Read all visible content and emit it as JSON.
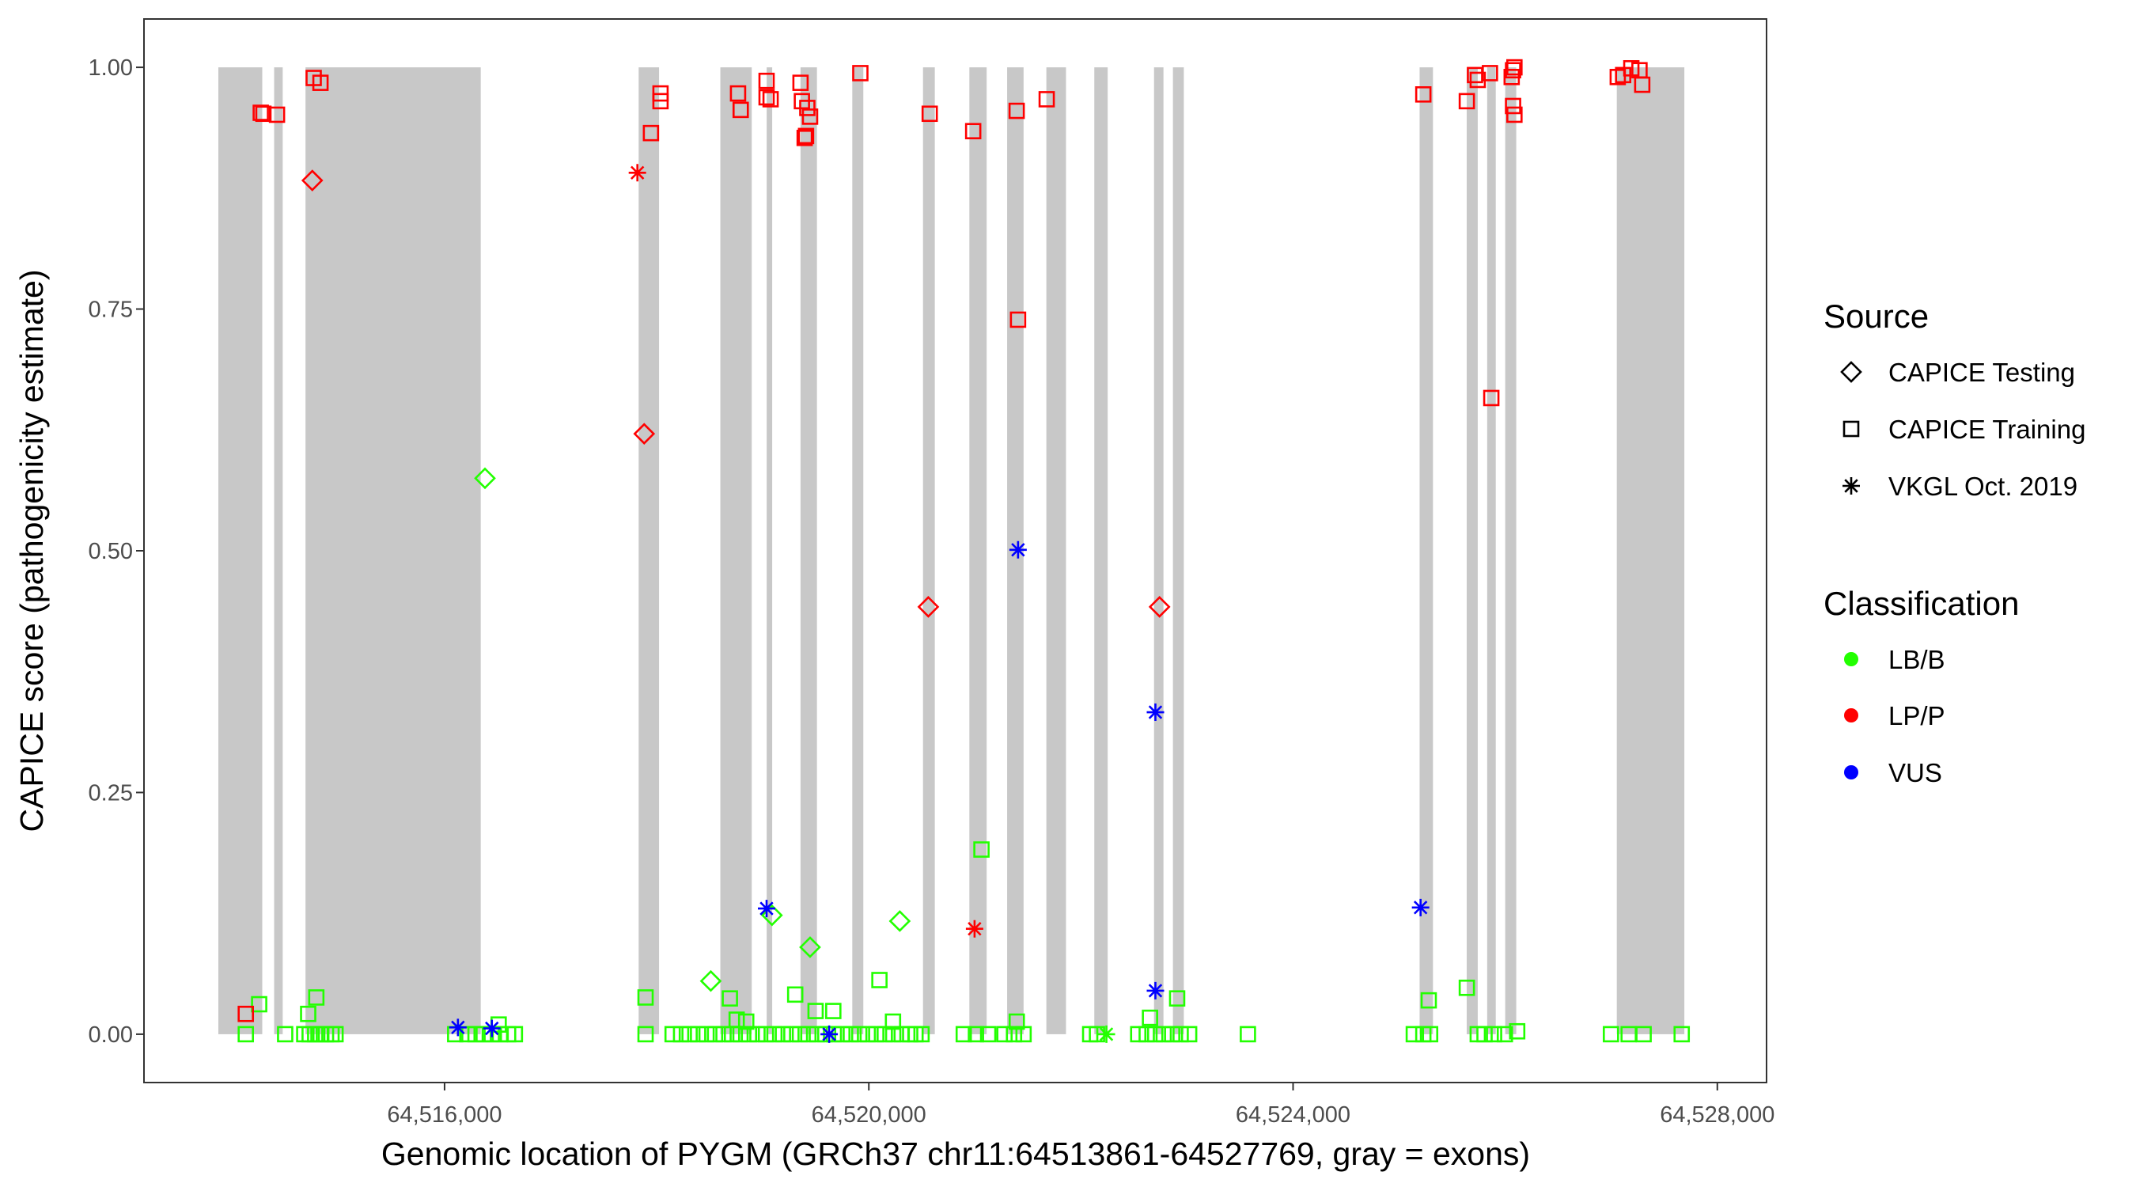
{
  "chart_data": {
    "type": "scatter",
    "xlabel": "Genomic location of PYGM (GRCh37 chr11:64513861-64527769, gray = exons)",
    "ylabel": "CAPICE score (pathogenicity estimate)",
    "xlim": [
      64513166,
      64528464
    ],
    "ylim": [
      -0.05,
      1.05
    ],
    "grid": false,
    "x_ticks": [
      {
        "value": 64516000,
        "label": "64,516,000"
      },
      {
        "value": 64520000,
        "label": "64,520,000"
      },
      {
        "value": 64524000,
        "label": "64,524,000"
      },
      {
        "value": 64528000,
        "label": "64,528,000"
      }
    ],
    "y_ticks": [
      {
        "value": 0,
        "label": "0.00"
      },
      {
        "value": 0.25,
        "label": "0.25"
      },
      {
        "value": 0.5,
        "label": "0.50"
      },
      {
        "value": 0.75,
        "label": "0.75"
      },
      {
        "value": 1,
        "label": "1.00"
      }
    ],
    "exon_band_color": "#c8c8c8",
    "exons": [
      [
        64513867,
        64514281
      ],
      [
        64514393,
        64514474
      ],
      [
        64514689,
        64516341
      ],
      [
        64517830,
        64518022
      ],
      [
        64518600,
        64518896
      ],
      [
        64519037,
        64519089
      ],
      [
        64519356,
        64519511
      ],
      [
        64519844,
        64519948
      ],
      [
        64520511,
        64520622
      ],
      [
        64520948,
        64521111
      ],
      [
        64521304,
        64521459
      ],
      [
        64521674,
        64521859
      ],
      [
        64522126,
        64522252
      ],
      [
        64522689,
        64522778
      ],
      [
        64522867,
        64522970
      ],
      [
        64525193,
        64525319
      ],
      [
        64525637,
        64525741
      ],
      [
        64525830,
        64525911
      ],
      [
        64526000,
        64526104
      ],
      [
        64527052,
        64527689
      ]
    ],
    "legend": {
      "placement": "right",
      "source_title": "Source",
      "sources": [
        {
          "key": "testing",
          "label": "CAPICE Testing",
          "shape": "diamond"
        },
        {
          "key": "training",
          "label": "CAPICE Training",
          "shape": "square"
        },
        {
          "key": "vkgl",
          "label": "VKGL Oct. 2019",
          "shape": "asterisk"
        }
      ],
      "class_title": "Classification",
      "classes": [
        {
          "key": "LB/B",
          "label": "LB/B",
          "color": "#22ff00"
        },
        {
          "key": "LP/P",
          "label": "LP/P",
          "color": "#ff0000"
        },
        {
          "key": "VUS",
          "label": "VUS",
          "color": "#0000ff"
        }
      ]
    },
    "series": [
      {
        "source": "training",
        "class": "LB/B",
        "points": [
          [
            64514126,
            0
          ],
          [
            64514497,
            0
          ],
          [
            64514677,
            0
          ],
          [
            64514728,
            0
          ],
          [
            64514780,
            0
          ],
          [
            64514831,
            0
          ],
          [
            64514882,
            0
          ],
          [
            64514934,
            0
          ],
          [
            64514972,
            0
          ],
          [
            64516100,
            0
          ],
          [
            64516215,
            0
          ],
          [
            64516292,
            0
          ],
          [
            64516369,
            0
          ],
          [
            64516445,
            0
          ],
          [
            64516522,
            0
          ],
          [
            64516599,
            0
          ],
          [
            64516663,
            0
          ],
          [
            64517895,
            0
          ],
          [
            64518150,
            0
          ],
          [
            64518230,
            0
          ],
          [
            64518310,
            0
          ],
          [
            64518390,
            0
          ],
          [
            64518470,
            0
          ],
          [
            64518550,
            0
          ],
          [
            64518630,
            0
          ],
          [
            64518710,
            0
          ],
          [
            64518790,
            0
          ],
          [
            64518870,
            0
          ],
          [
            64518950,
            0
          ],
          [
            64519030,
            0
          ],
          [
            64519110,
            0
          ],
          [
            64519190,
            0
          ],
          [
            64519270,
            0
          ],
          [
            64519350,
            0
          ],
          [
            64519430,
            0
          ],
          [
            64519510,
            0
          ],
          [
            64519590,
            0
          ],
          [
            64519670,
            0
          ],
          [
            64519750,
            0
          ],
          [
            64519830,
            0
          ],
          [
            64519910,
            0
          ],
          [
            64519990,
            0
          ],
          [
            64520070,
            0
          ],
          [
            64520150,
            0
          ],
          [
            64520230,
            0
          ],
          [
            64520310,
            0
          ],
          [
            64520390,
            0
          ],
          [
            64520440,
            0
          ],
          [
            64520497,
            0
          ],
          [
            64520895,
            0
          ],
          [
            64521010,
            0
          ],
          [
            64521125,
            0
          ],
          [
            64521279,
            0
          ],
          [
            64521369,
            0
          ],
          [
            64521459,
            0
          ],
          [
            64522087,
            0
          ],
          [
            64522151,
            0
          ],
          [
            64522540,
            0
          ],
          [
            64522620,
            0
          ],
          [
            64522700,
            0
          ],
          [
            64522780,
            0
          ],
          [
            64522860,
            0
          ],
          [
            64522940,
            0
          ],
          [
            64523020,
            0
          ],
          [
            64523574,
            0
          ],
          [
            64525138,
            0
          ],
          [
            64525228,
            0
          ],
          [
            64525292,
            0
          ],
          [
            64525741,
            0
          ],
          [
            64525805,
            0
          ],
          [
            64525895,
            0
          ],
          [
            64525997,
            0
          ],
          [
            64526113,
            0.003
          ],
          [
            64526997,
            0
          ],
          [
            64527164,
            0
          ],
          [
            64527305,
            0
          ],
          [
            64527664,
            0
          ],
          [
            64514252,
            0.031
          ],
          [
            64514714,
            0.021
          ],
          [
            64514791,
            0.038
          ],
          [
            64516510,
            0.01
          ],
          [
            64517895,
            0.038
          ],
          [
            64518690,
            0.037
          ],
          [
            64518754,
            0.015
          ],
          [
            64518844,
            0.013
          ],
          [
            64519306,
            0.041
          ],
          [
            64519498,
            0.024
          ],
          [
            64519665,
            0.024
          ],
          [
            64520100,
            0.056
          ],
          [
            64520228,
            0.013
          ],
          [
            64521062,
            0.191
          ],
          [
            64521395,
            0.013
          ],
          [
            64522651,
            0.017
          ],
          [
            64522907,
            0.037
          ],
          [
            64525279,
            0.035
          ],
          [
            64525638,
            0.048
          ]
        ]
      },
      {
        "source": "training",
        "class": "LP/P",
        "points": [
          [
            64514267,
            0.953
          ],
          [
            64514292,
            0.952
          ],
          [
            64514420,
            0.951
          ],
          [
            64514766,
            0.989
          ],
          [
            64514830,
            0.984
          ],
          [
            64514126,
            0.021
          ],
          [
            64518036,
            0.973
          ],
          [
            64518036,
            0.965
          ],
          [
            64517946,
            0.932
          ],
          [
            64518767,
            0.973
          ],
          [
            64518792,
            0.956
          ],
          [
            64519036,
            0.986
          ],
          [
            64519036,
            0.969
          ],
          [
            64519074,
            0.967
          ],
          [
            64519356,
            0.984
          ],
          [
            64519369,
            0.965
          ],
          [
            64519420,
            0.958
          ],
          [
            64519446,
            0.949
          ],
          [
            64519408,
            0.929
          ],
          [
            64519395,
            0.927
          ],
          [
            64519920,
            0.994
          ],
          [
            64520574,
            0.952
          ],
          [
            64520984,
            0.934
          ],
          [
            64521394,
            0.955
          ],
          [
            64521407,
            0.739
          ],
          [
            64521677,
            0.967
          ],
          [
            64525228,
            0.972
          ],
          [
            64525638,
            0.965
          ],
          [
            64525715,
            0.992
          ],
          [
            64525741,
            0.987
          ],
          [
            64525856,
            0.994
          ],
          [
            64526061,
            0.99
          ],
          [
            64526087,
            1.0
          ],
          [
            64526074,
            0.997
          ],
          [
            64526074,
            0.96
          ],
          [
            64526087,
            0.951
          ],
          [
            64525869,
            0.658
          ],
          [
            64527061,
            0.99
          ],
          [
            64527112,
            0.992
          ],
          [
            64527189,
            0.999
          ],
          [
            64527266,
            0.997
          ],
          [
            64527292,
            0.982
          ]
        ]
      },
      {
        "source": "testing",
        "class": "LP/P",
        "points": [
          [
            64514753,
            0.883
          ],
          [
            64517882,
            0.621
          ],
          [
            64520561,
            0.442
          ],
          [
            64522741,
            0.442
          ]
        ]
      },
      {
        "source": "testing",
        "class": "LB/B",
        "points": [
          [
            64516381,
            0.575
          ],
          [
            64518510,
            0.055
          ],
          [
            64519087,
            0.123
          ],
          [
            64519446,
            0.09
          ],
          [
            64520292,
            0.117
          ]
        ]
      },
      {
        "source": "vkgl",
        "class": "LP/P",
        "points": [
          [
            64517818,
            0.891
          ],
          [
            64520997,
            0.109
          ]
        ]
      },
      {
        "source": "vkgl",
        "class": "VUS",
        "points": [
          [
            64516126,
            0.007
          ],
          [
            64516446,
            0.006
          ],
          [
            64519036,
            0.13
          ],
          [
            64519626,
            0
          ],
          [
            64521407,
            0.501
          ],
          [
            64522702,
            0.333
          ],
          [
            64522702,
            0.045
          ],
          [
            64525202,
            0.131
          ]
        ]
      },
      {
        "source": "vkgl",
        "class": "LB/B",
        "points": [
          [
            64522240,
            0
          ]
        ]
      }
    ]
  }
}
